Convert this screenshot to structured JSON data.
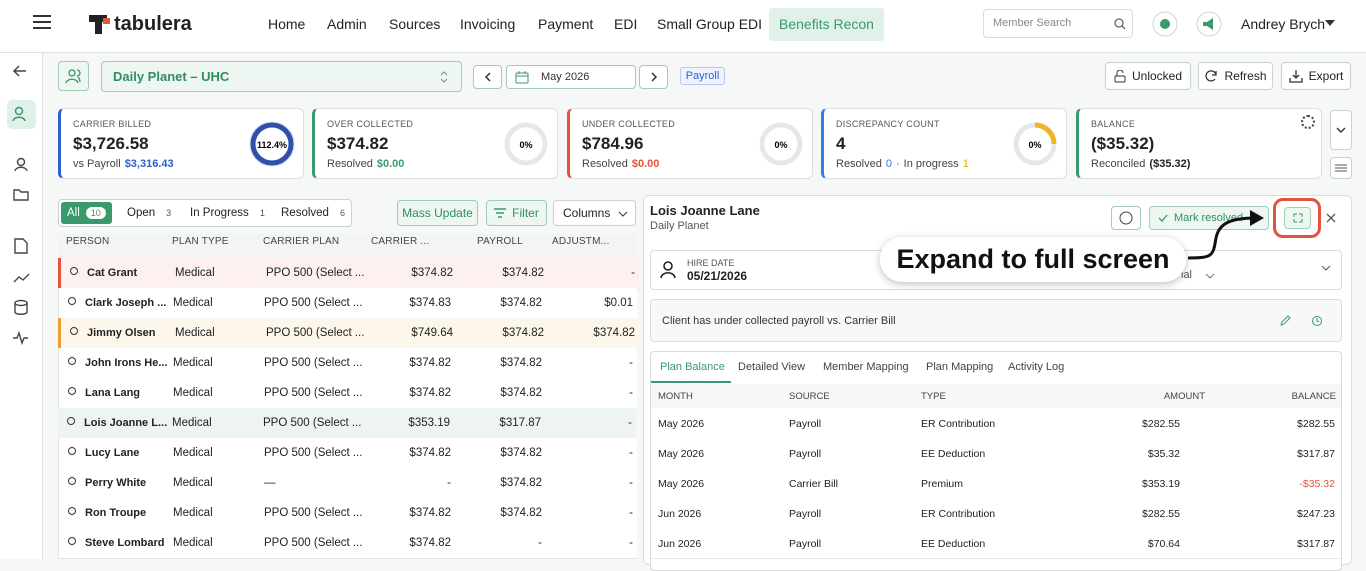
{
  "nav": {
    "logo": "tabulera",
    "menu": [
      "Home",
      "Admin",
      "Sources",
      "Invoicing",
      "Payment",
      "EDI",
      "Small Group EDI",
      "Benefits Recon"
    ],
    "search": "Member Search",
    "user": "Andrey Brych"
  },
  "toolbar": {
    "company": "Daily Planet – UHC",
    "period": "May 2026",
    "tag": "Payroll",
    "buttons": [
      "Unlocked",
      "Refresh",
      "Export"
    ]
  },
  "cards": [
    {
      "label": "CARRIER BILLED",
      "value": "$3,726.58",
      "sub": [
        "vs Payroll",
        "$3,316.43"
      ],
      "donut": "112.4%"
    },
    {
      "label": "OVER COLLECTED",
      "value": "$374.82",
      "sub": [
        "Resolved",
        "$0.00"
      ],
      "donut": "0%"
    },
    {
      "label": "UNDER COLLECTED",
      "value": "$784.96",
      "sub": [
        "Resolved",
        "$0.00"
      ],
      "donut": "0%"
    },
    {
      "label": "DISCREPANCY COUNT",
      "value": "4",
      "sub": [
        "Resolved",
        "0",
        "·",
        "In progress",
        "1"
      ],
      "donut": "0%"
    },
    {
      "label": "BALANCE",
      "value": "($35.32)",
      "sub": [
        "Reconciled",
        "($35.32)"
      ]
    }
  ],
  "filters": {
    "segments": [
      {
        "label": "All",
        "count": 10
      },
      {
        "label": "Open",
        "count": 3
      },
      {
        "label": "In Progress",
        "count": 1
      },
      {
        "label": "Resolved",
        "count": 6
      }
    ],
    "buttons": [
      "Mass Update",
      "Filter",
      "Columns"
    ]
  },
  "table": {
    "headers": [
      "PERSON",
      "PLAN TYPE",
      "CARRIER PLAN",
      "CARRIER ...",
      "PAYROLL",
      "ADJUSTM..."
    ],
    "rows": [
      [
        "Cat Grant",
        "Medical",
        "PPO 500 (Select ...",
        "$374.82",
        "$374.82",
        "-"
      ],
      [
        "Clark Joseph ...",
        "Medical",
        "PPO 500 (Select ...",
        "$374.83",
        "$374.82",
        "$0.01"
      ],
      [
        "Jimmy Olsen",
        "Medical",
        "PPO 500 (Select ...",
        "$749.64",
        "$374.82",
        "$374.82"
      ],
      [
        "John Irons He...",
        "Medical",
        "PPO 500 (Select ...",
        "$374.82",
        "$374.82",
        "-"
      ],
      [
        "Lana Lang",
        "Medical",
        "PPO 500 (Select ...",
        "$374.82",
        "$374.82",
        "-"
      ],
      [
        "Lois Joanne L...",
        "Medical",
        "PPO 500 (Select ...",
        "$353.19",
        "$317.87",
        "-"
      ],
      [
        "Lucy Lane",
        "Medical",
        "PPO 500 (Select ...",
        "$374.82",
        "$374.82",
        "-"
      ],
      [
        "Perry White",
        "Medical",
        "—",
        "-",
        "$374.82",
        "-"
      ],
      [
        "Ron Troupe",
        "Medical",
        "PPO 500 (Select ...",
        "$374.82",
        "$374.82",
        "-"
      ],
      [
        "Steve Lombard",
        "Medical",
        "PPO 500 (Select ...",
        "$374.82",
        "-",
        "-"
      ]
    ]
  },
  "detail": {
    "name": "Lois Joanne Lane",
    "company": "Daily Planet",
    "resolve": "Mark resolved",
    "hire_label": "HIRE DATE",
    "hire_date": "05/21/2026",
    "partial": "ial",
    "callout": "Expand to full screen",
    "message": "Client has under collected payroll vs. Carrier Bill",
    "tabs": [
      "Plan Balance",
      "Detailed View",
      "Member Mapping",
      "Plan Mapping",
      "Activity Log"
    ],
    "headers": [
      "MONTH",
      "SOURCE",
      "TYPE",
      "AMOUNT",
      "BALANCE"
    ],
    "rows": [
      [
        "May 2026",
        "Payroll",
        "ER Contribution",
        "$282.55",
        "$282.55"
      ],
      [
        "May 2026",
        "Payroll",
        "EE Deduction",
        "$35.32",
        "$317.87"
      ],
      [
        "May 2026",
        "Carrier Bill",
        "Premium",
        "$353.19",
        "-$35.32"
      ],
      [
        "Jun 2026",
        "Payroll",
        "ER Contribution",
        "$282.55",
        "$247.23"
      ],
      [
        "Jun 2026",
        "Payroll",
        "EE Deduction",
        "$70.64",
        "$317.87"
      ]
    ]
  }
}
